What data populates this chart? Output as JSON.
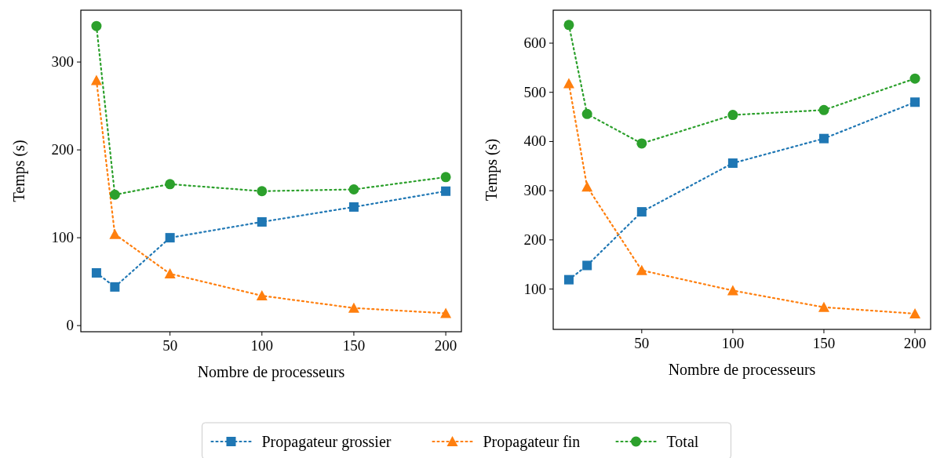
{
  "chart_data": [
    {
      "type": "line",
      "xlabel": "Nombre de processeurs",
      "ylabel": "Temps (s)",
      "x": [
        10,
        20,
        50,
        100,
        150,
        200
      ],
      "xlim": [
        1.5,
        208.5
      ],
      "ylim": [
        -7,
        359
      ],
      "xticks": [
        50,
        100,
        150,
        200
      ],
      "yticks": [
        0,
        100,
        200,
        300
      ],
      "grid": false,
      "legend": "bottom",
      "line_style": "dotted",
      "series": [
        {
          "name": "Propagateur grossier",
          "color": "#1f77b4",
          "marker": "square",
          "values": [
            60,
            44,
            100,
            118,
            135,
            153
          ]
        },
        {
          "name": "Propagateur fin",
          "color": "#ff7f0e",
          "marker": "triangle",
          "values": [
            279,
            104,
            59,
            34,
            20,
            14
          ]
        },
        {
          "name": "Total",
          "color": "#2ca02c",
          "marker": "circle",
          "values": [
            341,
            149,
            161,
            153,
            155,
            169
          ]
        }
      ]
    },
    {
      "type": "line",
      "xlabel": "Nombre de processeurs",
      "ylabel": "Temps (s)",
      "x": [
        10,
        20,
        50,
        100,
        150,
        200
      ],
      "xlim": [
        1.4,
        208.6
      ],
      "ylim": [
        18,
        667
      ],
      "xticks": [
        50,
        100,
        150,
        200
      ],
      "yticks": [
        100,
        200,
        300,
        400,
        500,
        600
      ],
      "grid": false,
      "line_style": "dotted",
      "series": [
        {
          "color": "#1f77b4",
          "marker": "square",
          "values": [
            119,
            148,
            257,
            356,
            406,
            480
          ]
        },
        {
          "color": "#ff7f0e",
          "marker": "triangle",
          "values": [
            518,
            308,
            138,
            97,
            63,
            50
          ]
        },
        {
          "color": "#2ca02c",
          "marker": "circle",
          "values": [
            637,
            456,
            396,
            454,
            464,
            528
          ]
        }
      ]
    }
  ]
}
